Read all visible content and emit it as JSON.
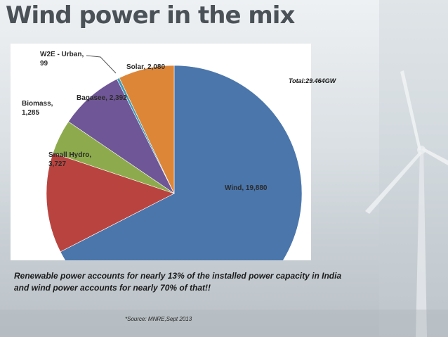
{
  "slide": {
    "title": "Wind power in the mix",
    "total_note": "Total:29.464GW",
    "statement_line1": "Renewable power accounts for nearly 13% of the installed power capacity in India",
    "statement_line2": "and wind power accounts for nearly 70% of that!!",
    "source": "*Source: MNRE,Sept 2013"
  },
  "chart_data": {
    "type": "pie",
    "title": "",
    "slices": [
      {
        "label": "Wind",
        "value": 19880,
        "display": "Wind, 19,880",
        "color": "#4a76ab"
      },
      {
        "label": "Small Hydro",
        "value": 3727,
        "display": [
          "Small Hydro,",
          "3,727"
        ],
        "color": "#b9443f"
      },
      {
        "label": "Biomass",
        "value": 1285,
        "display": [
          "Biomass,",
          "1,285"
        ],
        "color": "#8dab4c"
      },
      {
        "label": "Bagasee",
        "value": 2392,
        "display": "Bagasee, 2,392",
        "color": "#6f5696"
      },
      {
        "label": "W2E - Urban",
        "value": 99,
        "display": [
          "W2E - Urban,",
          "99"
        ],
        "color": "#3e9bb7"
      },
      {
        "label": "Solar",
        "value": 2080,
        "display": "Solar, 2,080",
        "color": "#dd8638"
      }
    ],
    "start_at": "top",
    "direction": "clockwise"
  }
}
